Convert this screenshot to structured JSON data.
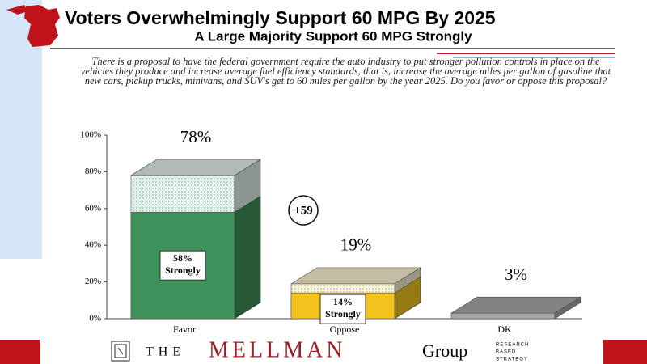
{
  "header": {
    "title": "Voters Overwhelmingly Support 60 MPG By 2025",
    "subtitle": "A Large Majority Support 60 MPG Strongly"
  },
  "question": "There is a proposal to have the federal government require the auto industry to put stronger pollution controls in place on the vehicles they produce and increase average fuel efficiency standards, that is, increase the average miles per gallon of gasoline that new cars, pickup trucks, minivans, and SUV's get to 60 miles per gallon by the year 2025.  Do you favor or oppose this proposal?",
  "chart_data": {
    "type": "bar",
    "categories": [
      "Favor",
      "Oppose",
      "DK"
    ],
    "totals": {
      "values": [
        78,
        19,
        3
      ],
      "value_labels": [
        "78%",
        "19%",
        "3%"
      ],
      "colors": [
        "#e2f1e8",
        "#fbf2d2",
        "#a8a8a8"
      ]
    },
    "series": [
      {
        "name": "Strongly",
        "values": [
          58,
          14,
          null
        ],
        "value_labels": [
          "58%",
          "14%",
          null
        ],
        "colors": [
          "#3e9159",
          "#f1c31c",
          null
        ]
      }
    ],
    "annotation": "+59",
    "ylim": [
      0,
      100
    ],
    "yticks": [
      {
        "value": 0,
        "label": "0%"
      },
      {
        "value": 20,
        "label": "20%"
      },
      {
        "value": 40,
        "label": "40%"
      },
      {
        "value": 60,
        "label": "60%"
      },
      {
        "value": 80,
        "label": "80%"
      },
      {
        "value": 100,
        "label": "100%"
      }
    ]
  },
  "footer": {
    "the": "THE",
    "name": "MELLMAN",
    "group": "Group",
    "tagline": [
      "RESEARCH",
      "BASED",
      "STRATEGY"
    ]
  }
}
